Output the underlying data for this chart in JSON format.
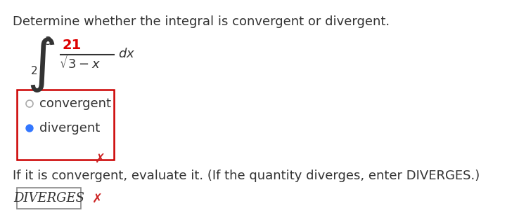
{
  "bg_color": "#e8e8e8",
  "main_question": "Determine whether the integral is convergent or divergent.",
  "question_color": "#333333",
  "integral_num_color": "#dd0000",
  "option1": "convergent",
  "option2": "divergent",
  "radio_color_unselected": "#aaaaaa",
  "radio_color_selected": "#3377ff",
  "box_border_color": "#cc0000",
  "xmark_color": "#cc2222",
  "followup_text": "If it is convergent, evaluate it. (If the quantity diverges, enter DIVERGES.)",
  "answer_text": "DIVERGES",
  "answer_box_color": "#888888",
  "font_size_main": 13,
  "font_size_integral": 20,
  "font_size_options": 13,
  "font_size_answer": 13,
  "fig_w": 7.38,
  "fig_h": 3.14,
  "dpi": 100
}
